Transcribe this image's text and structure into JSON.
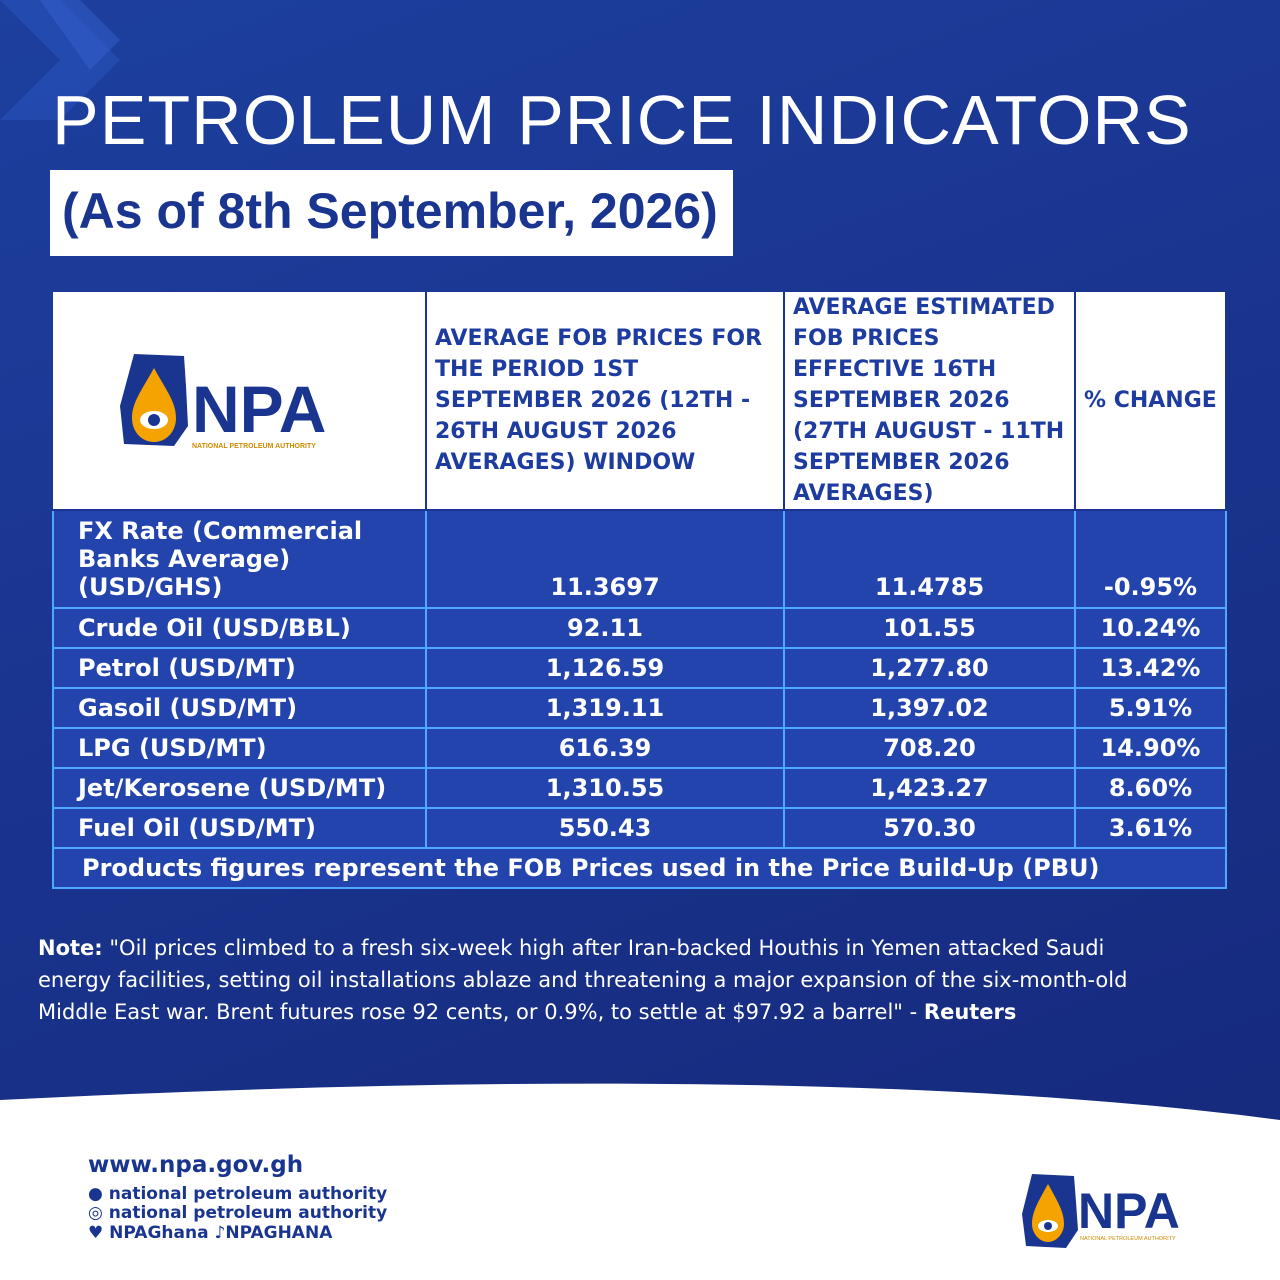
{
  "header": {
    "title": "PETROLEUM PRICE INDICATORS",
    "subtitle": "(As of 8th September, 2026)"
  },
  "logo": {
    "name": "NPA",
    "full_name": "NATIONAL PETROLEUM AUTHORITY"
  },
  "table": {
    "headers": [
      "AVERAGE FOB PRICES FOR THE PERIOD 1ST SEPTEMBER 2026 (12TH - 26TH AUGUST 2026 AVERAGES) WINDOW",
      "AVERAGE ESTIMATED FOB PRICES EFFECTIVE 16TH SEPTEMBER 2026 (27TH AUGUST - 11TH SEPTEMBER 2026 AVERAGES)",
      "% CHANGE"
    ],
    "rows": [
      [
        "FX Rate (Commercial Banks Average) (USD/GHS)",
        "11.3697",
        "11.4785",
        "-0.95%"
      ],
      [
        "Crude Oil (USD/BBL)",
        "92.11",
        "101.55",
        "10.24%"
      ],
      [
        "Petrol (USD/MT)",
        "1,126.59",
        "1,277.80",
        "13.42%"
      ],
      [
        "Gasoil (USD/MT)",
        "1,319.11",
        "1,397.02",
        "5.91%"
      ],
      [
        "LPG (USD/MT)",
        "616.39",
        "708.20",
        "14.90%"
      ],
      [
        "Jet/Kerosene (USD/MT)",
        "1,310.55",
        "1,423.27",
        "8.60%"
      ],
      [
        "Fuel Oil (USD/MT)",
        "550.43",
        "570.30",
        "3.61%"
      ]
    ],
    "footnote": "Products figures represent the FOB Prices used in the Price Build-Up (PBU)"
  },
  "note": {
    "label": "Note:",
    "text": "\"Oil prices climbed to a fresh six-week high after Iran-backed Houthis in Yemen attacked Saudi energy facilities, setting oil installations ablaze and threatening a major expansion of the six-month-old Middle East war. Brent futures rose 92 cents, or 0.9%, to settle at $97.92 a barrel\" -",
    "source": "Reuters"
  },
  "footer": {
    "website": "www.npa.gov.gh",
    "facebook": "national petroleum authority",
    "instagram": "national petroleum authority",
    "twitter": "NPAGhana",
    "tiktok": "NPAGHANA"
  }
}
